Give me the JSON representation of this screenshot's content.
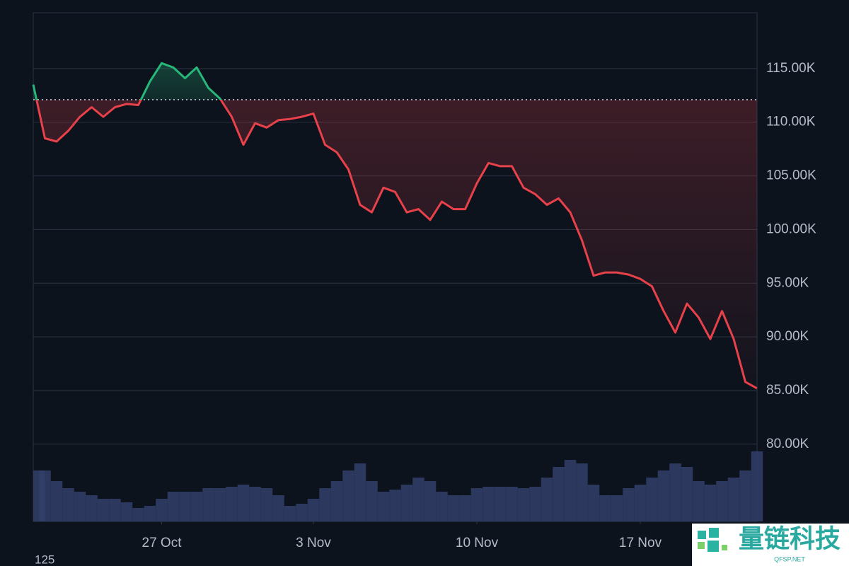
{
  "chart_data": {
    "type": "line",
    "ylim": [
      72800,
      120200
    ],
    "yticks": [
      {
        "value": 115000,
        "label": "115.00K"
      },
      {
        "value": 110000,
        "label": "110.00K"
      },
      {
        "value": 105000,
        "label": "105.00K"
      },
      {
        "value": 100000,
        "label": "100.00K"
      },
      {
        "value": 95000,
        "label": "95.00K"
      },
      {
        "value": 90000,
        "label": "90.00K"
      },
      {
        "value": 85000,
        "label": "85.00K"
      },
      {
        "value": 80000,
        "label": "80.00K"
      }
    ],
    "xlim": [
      0,
      62
    ],
    "xticks": [
      {
        "value": 11,
        "label": "27 Oct"
      },
      {
        "value": 24,
        "label": "3 Nov"
      },
      {
        "value": 38,
        "label": "10 Nov"
      },
      {
        "value": 52,
        "label": "17 Nov"
      }
    ],
    "baseline": 112100,
    "grid": true,
    "series": [
      {
        "name": "price",
        "color_up": "#26b87a",
        "color_down": "#e8414a",
        "values": [
          113500,
          108500,
          108200,
          109200,
          110500,
          111400,
          110500,
          111400,
          111700,
          111600,
          113800,
          115500,
          115100,
          114100,
          115100,
          113200,
          112200,
          110500,
          107900,
          109900,
          109500,
          110200,
          110300,
          110500,
          110800,
          107900,
          107200,
          105600,
          102300,
          101600,
          103900,
          103500,
          101600,
          101900,
          100900,
          102600,
          101900,
          101900,
          104300,
          106200,
          105900,
          105900,
          103900,
          103300,
          102300,
          102900,
          101600,
          99000,
          95700,
          96000,
          96000,
          95800,
          95400,
          94700,
          92400,
          90400,
          93100,
          91800,
          89800,
          92400,
          89800,
          85800,
          85200
        ]
      }
    ],
    "volume": {
      "color": "#33406a",
      "vlim": [
        0,
        100
      ],
      "axis_label": "125",
      "values": [
        72,
        72,
        57,
        47,
        42,
        37,
        32,
        32,
        27,
        19,
        22,
        32,
        42,
        42,
        42,
        47,
        47,
        49,
        52,
        49,
        47,
        37,
        22,
        25,
        32,
        47,
        57,
        72,
        82,
        57,
        42,
        45,
        52,
        62,
        57,
        42,
        37,
        37,
        47,
        49,
        49,
        49,
        47,
        49,
        62,
        77,
        87,
        82,
        52,
        37,
        37,
        47,
        52,
        62,
        72,
        82,
        77,
        57,
        52,
        57,
        62,
        72,
        99
      ]
    }
  },
  "watermark": {
    "title": "量链科技",
    "subtitle": "QFSP.NET"
  }
}
